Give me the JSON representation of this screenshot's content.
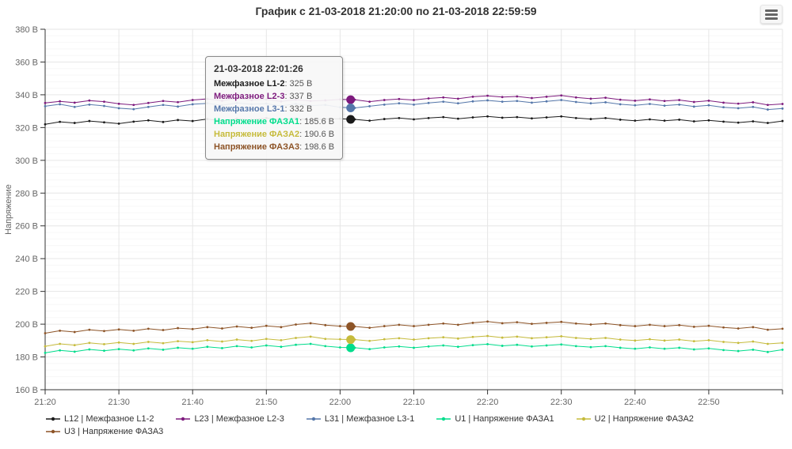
{
  "title": "График с 21-03-2018 21:20:00 по 21-03-2018 22:59:59",
  "icons": {
    "export_menu": "hamburger"
  },
  "axis": {
    "y_unit_suffix": " В",
    "y_label_color": "#666666",
    "x_label_color": "#666666",
    "axis_line_color": "#333333",
    "grid_major_color": "#e6e6e6",
    "grid_minor_color": "#f7f7f7"
  },
  "tooltip": {
    "header": "21-03-2018 22:01:26",
    "x_minutes": 41.43,
    "value_color": "#555555",
    "rows": [
      {
        "series": "L12",
        "label": "Межфазное L1-2",
        "value": "325 В",
        "y": 325
      },
      {
        "series": "L23",
        "label": "Межфазное L2-3",
        "value": "337 В",
        "y": 337
      },
      {
        "series": "L31",
        "label": "Межфазное L3-1",
        "value": "332 В",
        "y": 332
      },
      {
        "series": "U1",
        "label": "Напряжение ФАЗА1",
        "value": "185.6 В",
        "y": 185.6
      },
      {
        "series": "U2",
        "label": "Напряжение ФАЗА2",
        "value": "190.6 В",
        "y": 190.6
      },
      {
        "series": "U3",
        "label": "Напряжение ФАЗА3",
        "value": "198.6 В",
        "y": 198.6
      }
    ]
  },
  "chart_data": {
    "type": "line",
    "title": "График с 21-03-2018 21:20:00 по 21-03-2018 22:59:59",
    "xlabel": "",
    "ylabel": "Напряжение",
    "ylim": [
      160,
      380
    ],
    "y_tick_step": 20,
    "y_minor_step": 4,
    "x_total_minutes": 100,
    "x_step_minutes": 2,
    "x_tick_every_minutes": 10,
    "x_ticks": [
      "21:20",
      "21:30",
      "21:40",
      "21:50",
      "22:00",
      "22:10",
      "22:20",
      "22:30",
      "22:40",
      "22:50"
    ],
    "grid": true,
    "legend_position": "bottom",
    "series": [
      {
        "id": "L12",
        "name": "L12 | Межфазное L1-2",
        "tooltip_label": "Межфазное L1-2",
        "color": "#1a1a1a",
        "values": [
          322.0,
          323.5,
          322.8,
          324.0,
          323.2,
          322.4,
          323.6,
          324.4,
          323.4,
          324.6,
          324.0,
          325.2,
          324.2,
          325.4,
          324.6,
          325.8,
          324.8,
          325.6,
          324.6,
          325.2,
          325.4,
          325.0,
          324.2,
          325.2,
          325.8,
          325.0,
          325.8,
          326.4,
          325.4,
          326.2,
          326.8,
          326.0,
          326.4,
          325.6,
          326.2,
          326.8,
          325.8,
          325.2,
          325.8,
          324.8,
          324.2,
          325.0,
          324.2,
          324.8,
          323.8,
          324.4,
          323.6,
          323.0,
          323.8,
          322.8,
          324.0
        ]
      },
      {
        "id": "L23",
        "name": "L23 | Межфазное L2-3",
        "tooltip_label": "Межфазное L2-3",
        "color": "#7d1a7d",
        "values": [
          335.0,
          336.0,
          335.2,
          336.5,
          335.8,
          334.5,
          333.8,
          335.0,
          336.2,
          335.5,
          336.8,
          337.5,
          336.4,
          337.8,
          336.8,
          337.2,
          336.0,
          337.0,
          336.2,
          336.6,
          337.2,
          337.0,
          335.8,
          336.8,
          337.4,
          336.8,
          337.8,
          338.4,
          337.6,
          338.8,
          339.4,
          338.6,
          339.0,
          338.0,
          338.8,
          339.6,
          338.4,
          337.6,
          338.2,
          337.0,
          336.4,
          337.2,
          336.2,
          336.8,
          335.6,
          336.4,
          335.2,
          334.6,
          335.4,
          333.8,
          334.4
        ]
      },
      {
        "id": "L31",
        "name": "L31 | Межфазное L3-1",
        "tooltip_label": "Межфазное L3-1",
        "color": "#5577aa",
        "values": [
          333.0,
          334.2,
          332.6,
          334.0,
          333.2,
          331.8,
          331.2,
          332.6,
          333.8,
          332.8,
          334.2,
          334.8,
          333.6,
          335.0,
          334.2,
          334.6,
          333.2,
          334.4,
          333.4,
          333.8,
          332.4,
          332.0,
          333.0,
          334.0,
          334.8,
          334.0,
          335.0,
          335.8,
          334.8,
          336.0,
          336.6,
          335.8,
          336.2,
          335.2,
          336.0,
          336.8,
          335.6,
          334.8,
          335.4,
          334.2,
          333.6,
          334.4,
          333.4,
          334.0,
          332.8,
          333.6,
          332.4,
          331.8,
          332.6,
          331.0,
          331.6
        ]
      },
      {
        "id": "U1",
        "name": "U1 | Напряжение ФАЗА1",
        "tooltip_label": "Напряжение ФАЗА1",
        "color": "#00dd8c",
        "values": [
          182.5,
          184.0,
          183.2,
          184.6,
          183.8,
          184.8,
          184.0,
          185.2,
          184.4,
          185.6,
          185.0,
          186.2,
          185.4,
          186.6,
          185.8,
          187.0,
          186.2,
          187.4,
          188.0,
          186.6,
          185.8,
          185.6,
          184.8,
          185.8,
          186.4,
          185.6,
          186.4,
          187.0,
          186.2,
          187.2,
          187.8,
          186.8,
          187.4,
          186.4,
          187.0,
          187.6,
          186.6,
          186.0,
          186.6,
          185.6,
          185.0,
          185.8,
          185.0,
          185.6,
          184.6,
          185.2,
          184.2,
          183.6,
          184.4,
          183.0,
          184.4
        ]
      },
      {
        "id": "U2",
        "name": "U2 | Напряжение ФАЗА2",
        "tooltip_label": "Напряжение ФАЗА2",
        "color": "#c6bb3c",
        "values": [
          186.5,
          188.0,
          187.2,
          188.6,
          187.8,
          188.8,
          188.0,
          189.2,
          188.4,
          189.6,
          189.0,
          190.2,
          189.4,
          190.6,
          189.8,
          191.0,
          190.2,
          191.6,
          192.4,
          191.0,
          190.8,
          190.6,
          189.8,
          190.8,
          191.4,
          190.6,
          191.4,
          192.0,
          191.2,
          192.2,
          192.8,
          191.8,
          192.4,
          191.4,
          192.0,
          192.6,
          191.6,
          191.0,
          191.6,
          190.6,
          190.0,
          190.8,
          190.0,
          190.6,
          189.6,
          190.2,
          189.2,
          188.6,
          189.4,
          188.0,
          188.6
        ]
      },
      {
        "id": "U3",
        "name": "U3 | Напряжение ФАЗА3",
        "tooltip_label": "Напряжение ФАЗА3",
        "color": "#8d5427",
        "values": [
          194.5,
          196.0,
          195.2,
          196.6,
          195.8,
          196.8,
          196.0,
          197.2,
          196.4,
          197.6,
          197.0,
          198.2,
          197.4,
          198.6,
          197.8,
          199.0,
          198.2,
          199.8,
          200.6,
          199.4,
          198.8,
          198.6,
          197.8,
          198.8,
          199.6,
          198.8,
          199.6,
          200.4,
          199.6,
          200.8,
          201.6,
          200.6,
          201.2,
          200.2,
          200.8,
          201.4,
          200.4,
          199.8,
          200.4,
          199.4,
          198.8,
          199.6,
          198.8,
          199.4,
          198.4,
          199.0,
          198.0,
          197.4,
          198.2,
          196.6,
          197.2
        ]
      }
    ]
  }
}
